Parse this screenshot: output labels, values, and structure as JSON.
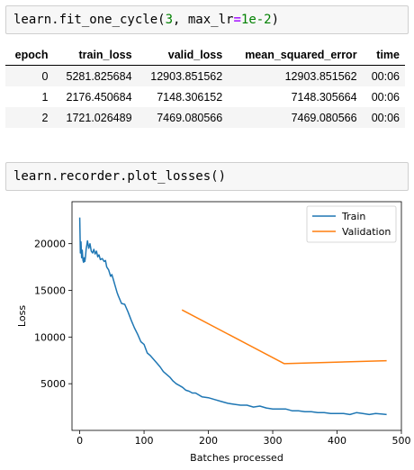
{
  "cell1": {
    "code_prefix": "learn.fit_one_cycle(",
    "code_arg1": "3",
    "code_sep": ", max_lr",
    "code_eq": "=",
    "code_arg2": "1e-2",
    "code_suffix": ")"
  },
  "table": {
    "headers": [
      "epoch",
      "train_loss",
      "valid_loss",
      "mean_squared_error",
      "time"
    ],
    "rows": [
      [
        "0",
        "5281.825684",
        "12903.851562",
        "12903.851562",
        "00:06"
      ],
      [
        "1",
        "2176.450684",
        "7148.306152",
        "7148.305664",
        "00:06"
      ],
      [
        "2",
        "1721.026489",
        "7469.080566",
        "7469.080566",
        "00:06"
      ]
    ]
  },
  "cell2": {
    "code": "learn.recorder.plot_losses()"
  },
  "chart_data": {
    "type": "line",
    "xlabel": "Batches processed",
    "ylabel": "Loss",
    "xlim": [
      -12,
      500
    ],
    "ylim": [
      0,
      24500
    ],
    "x_ticks": [
      0,
      100,
      200,
      300,
      400,
      500
    ],
    "y_ticks": [
      5000,
      10000,
      15000,
      20000
    ],
    "legend_position": "top-right",
    "grid": false,
    "series": [
      {
        "name": "Train",
        "color": "#1f77b4",
        "x": [
          0,
          1,
          2,
          3,
          4,
          5,
          6,
          7,
          8,
          9,
          10,
          12,
          14,
          16,
          18,
          20,
          22,
          24,
          26,
          28,
          30,
          32,
          35,
          38,
          40,
          42,
          45,
          48,
          50,
          52,
          55,
          58,
          60,
          65,
          70,
          75,
          80,
          85,
          90,
          95,
          100,
          105,
          110,
          115,
          120,
          125,
          130,
          135,
          140,
          145,
          150,
          155,
          160,
          165,
          170,
          175,
          180,
          190,
          200,
          210,
          220,
          230,
          240,
          250,
          260,
          270,
          280,
          290,
          300,
          310,
          320,
          330,
          340,
          350,
          360,
          370,
          380,
          390,
          400,
          410,
          420,
          430,
          440,
          450,
          460,
          470,
          477
        ],
        "values": [
          22800,
          19000,
          20200,
          18500,
          19300,
          18200,
          18000,
          18500,
          18100,
          18600,
          19400,
          20300,
          19500,
          20000,
          19200,
          19000,
          19400,
          18900,
          19200,
          18600,
          18800,
          18300,
          18400,
          18100,
          18200,
          17500,
          17200,
          16500,
          16700,
          16200,
          15500,
          14800,
          14400,
          13600,
          13500,
          12700,
          11800,
          11000,
          10300,
          9500,
          9200,
          8300,
          8000,
          7600,
          7200,
          6800,
          6300,
          6000,
          5700,
          5300,
          5000,
          4800,
          4600,
          4300,
          4200,
          4000,
          4000,
          3600,
          3500,
          3300,
          3100,
          2900,
          2800,
          2700,
          2700,
          2500,
          2600,
          2400,
          2300,
          2300,
          2300,
          2100,
          2100,
          2000,
          2000,
          1900,
          1900,
          1800,
          1800,
          1800,
          1700,
          1900,
          1800,
          1700,
          1800,
          1750,
          1700
        ]
      },
      {
        "name": "Validation",
        "color": "#ff7f0e",
        "x": [
          159,
          318,
          477
        ],
        "values": [
          12903.85,
          7148.31,
          7469.08
        ]
      }
    ]
  }
}
